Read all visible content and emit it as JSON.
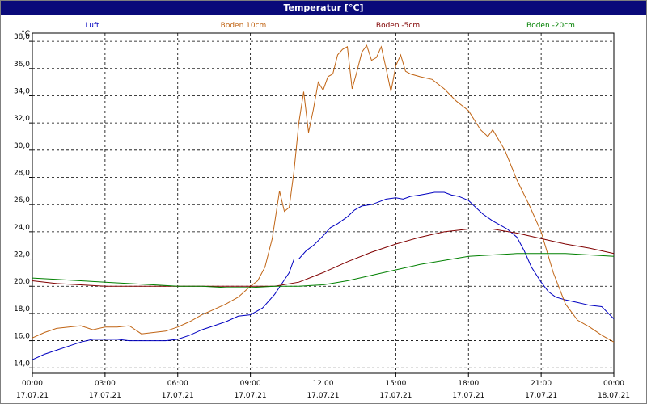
{
  "window": {
    "title": "Temperatur [°C]"
  },
  "chart_data": {
    "type": "line",
    "title": "Temperatur [°C]",
    "ylabel": "°C",
    "xlabel": "",
    "ylim": [
      13.6,
      38.6
    ],
    "yticks": [
      14.0,
      16.0,
      18.0,
      20.0,
      22.0,
      24.0,
      26.0,
      28.0,
      30.0,
      32.0,
      34.0,
      36.0,
      38.0
    ],
    "ytick_labels": [
      "14,0",
      "16,0",
      "18,0",
      "20,0",
      "22,0",
      "24,0",
      "26,0",
      "28,0",
      "30,0",
      "32,0",
      "34,0",
      "36,0",
      "38,0"
    ],
    "xlim": [
      0,
      24
    ],
    "xticks": [
      0,
      3,
      6,
      9,
      12,
      15,
      18,
      21,
      24
    ],
    "xtick_labels": [
      {
        "time": "00:00",
        "date": "17.07.21"
      },
      {
        "time": "03:00",
        "date": "17.07.21"
      },
      {
        "time": "06:00",
        "date": "17.07.21"
      },
      {
        "time": "09:00",
        "date": "17.07.21"
      },
      {
        "time": "12:00",
        "date": "17.07.21"
      },
      {
        "time": "15:00",
        "date": "17.07.21"
      },
      {
        "time": "18:00",
        "date": "17.07.21"
      },
      {
        "time": "21:00",
        "date": "17.07.21"
      },
      {
        "time": "00:00",
        "date": "18.07.21"
      }
    ],
    "grid": true,
    "legend": "top",
    "series": [
      {
        "name": "Luft",
        "color": "#0000c0",
        "points": [
          [
            0,
            14.6
          ],
          [
            0.5,
            15.0
          ],
          [
            1,
            15.3
          ],
          [
            1.5,
            15.6
          ],
          [
            2,
            15.9
          ],
          [
            2.5,
            16.1
          ],
          [
            3,
            16.1
          ],
          [
            3.5,
            16.1
          ],
          [
            4,
            16.0
          ],
          [
            4.5,
            16.0
          ],
          [
            5,
            16.0
          ],
          [
            5.5,
            16.0
          ],
          [
            6,
            16.1
          ],
          [
            6.5,
            16.4
          ],
          [
            7,
            16.8
          ],
          [
            7.5,
            17.1
          ],
          [
            8,
            17.4
          ],
          [
            8.5,
            17.8
          ],
          [
            9,
            17.9
          ],
          [
            9.5,
            18.4
          ],
          [
            10,
            19.4
          ],
          [
            10.3,
            20.2
          ],
          [
            10.6,
            21.0
          ],
          [
            10.8,
            22.0
          ],
          [
            11,
            22.0
          ],
          [
            11.3,
            22.6
          ],
          [
            11.6,
            23.0
          ],
          [
            12,
            23.7
          ],
          [
            12.3,
            24.3
          ],
          [
            12.6,
            24.6
          ],
          [
            13,
            25.1
          ],
          [
            13.3,
            25.6
          ],
          [
            13.6,
            25.9
          ],
          [
            14,
            26.0
          ],
          [
            14.3,
            26.2
          ],
          [
            14.6,
            26.4
          ],
          [
            15,
            26.5
          ],
          [
            15.3,
            26.4
          ],
          [
            15.6,
            26.6
          ],
          [
            16,
            26.7
          ],
          [
            16.3,
            26.8
          ],
          [
            16.6,
            26.9
          ],
          [
            17,
            26.9
          ],
          [
            17.3,
            26.7
          ],
          [
            17.6,
            26.6
          ],
          [
            18,
            26.3
          ],
          [
            18.3,
            25.8
          ],
          [
            18.6,
            25.3
          ],
          [
            19,
            24.8
          ],
          [
            19.3,
            24.5
          ],
          [
            19.6,
            24.2
          ],
          [
            20,
            23.6
          ],
          [
            20.3,
            22.6
          ],
          [
            20.6,
            21.4
          ],
          [
            21,
            20.3
          ],
          [
            21.3,
            19.6
          ],
          [
            21.6,
            19.2
          ],
          [
            22,
            19.0
          ],
          [
            22.5,
            18.8
          ],
          [
            23,
            18.6
          ],
          [
            23.5,
            18.5
          ],
          [
            24,
            17.6
          ]
        ]
      },
      {
        "name": "Boden 10cm",
        "color": "#c06414",
        "points": [
          [
            0,
            16.2
          ],
          [
            0.5,
            16.6
          ],
          [
            1,
            16.9
          ],
          [
            1.5,
            17.0
          ],
          [
            2,
            17.1
          ],
          [
            2.5,
            16.8
          ],
          [
            3,
            17.0
          ],
          [
            3.5,
            17.0
          ],
          [
            4,
            17.1
          ],
          [
            4.5,
            16.5
          ],
          [
            5,
            16.6
          ],
          [
            5.5,
            16.7
          ],
          [
            6,
            17.0
          ],
          [
            6.5,
            17.4
          ],
          [
            7,
            17.9
          ],
          [
            7.5,
            18.3
          ],
          [
            8,
            18.7
          ],
          [
            8.5,
            19.2
          ],
          [
            9,
            20.0
          ],
          [
            9.3,
            20.4
          ],
          [
            9.6,
            21.4
          ],
          [
            9.9,
            23.5
          ],
          [
            10.2,
            27.0
          ],
          [
            10.4,
            25.5
          ],
          [
            10.6,
            25.8
          ],
          [
            10.8,
            28.5
          ],
          [
            11,
            32.0
          ],
          [
            11.2,
            34.3
          ],
          [
            11.4,
            31.3
          ],
          [
            11.6,
            33.0
          ],
          [
            11.8,
            35.0
          ],
          [
            12,
            34.4
          ],
          [
            12.2,
            35.4
          ],
          [
            12.4,
            35.6
          ],
          [
            12.6,
            37.0
          ],
          [
            12.8,
            37.4
          ],
          [
            13,
            37.6
          ],
          [
            13.2,
            34.5
          ],
          [
            13.4,
            35.8
          ],
          [
            13.6,
            37.2
          ],
          [
            13.8,
            37.7
          ],
          [
            14,
            36.6
          ],
          [
            14.2,
            36.8
          ],
          [
            14.4,
            37.6
          ],
          [
            14.6,
            36.0
          ],
          [
            14.8,
            34.3
          ],
          [
            15,
            36.2
          ],
          [
            15.2,
            37.0
          ],
          [
            15.4,
            35.8
          ],
          [
            15.6,
            35.6
          ],
          [
            16,
            35.4
          ],
          [
            16.5,
            35.2
          ],
          [
            17,
            34.5
          ],
          [
            17.5,
            33.6
          ],
          [
            18,
            32.9
          ],
          [
            18.5,
            31.5
          ],
          [
            18.8,
            31.0
          ],
          [
            19,
            31.5
          ],
          [
            19.5,
            30.0
          ],
          [
            20,
            27.8
          ],
          [
            20.5,
            26.0
          ],
          [
            21,
            24.0
          ],
          [
            21.5,
            21.0
          ],
          [
            22,
            18.7
          ],
          [
            22.5,
            17.5
          ],
          [
            23,
            17.0
          ],
          [
            23.5,
            16.4
          ],
          [
            24,
            15.9
          ]
        ]
      },
      {
        "name": "Boden -5cm",
        "color": "#800000",
        "points": [
          [
            0,
            20.4
          ],
          [
            1,
            20.2
          ],
          [
            2,
            20.1
          ],
          [
            3,
            20.0
          ],
          [
            4,
            20.0
          ],
          [
            5,
            20.0
          ],
          [
            6,
            20.0
          ],
          [
            7,
            20.0
          ],
          [
            8,
            20.0
          ],
          [
            9,
            20.0
          ],
          [
            10,
            20.0
          ],
          [
            11,
            20.3
          ],
          [
            12,
            21.0
          ],
          [
            13,
            21.8
          ],
          [
            14,
            22.5
          ],
          [
            15,
            23.1
          ],
          [
            16,
            23.6
          ],
          [
            17,
            24.0
          ],
          [
            18,
            24.2
          ],
          [
            19,
            24.2
          ],
          [
            20,
            23.9
          ],
          [
            21,
            23.5
          ],
          [
            22,
            23.1
          ],
          [
            23,
            22.8
          ],
          [
            24,
            22.4
          ]
        ]
      },
      {
        "name": "Boden -20cm",
        "color": "#008000",
        "points": [
          [
            0,
            20.6
          ],
          [
            1,
            20.5
          ],
          [
            2,
            20.4
          ],
          [
            3,
            20.3
          ],
          [
            4,
            20.2
          ],
          [
            5,
            20.1
          ],
          [
            6,
            20.0
          ],
          [
            7,
            20.0
          ],
          [
            8,
            19.9
          ],
          [
            9,
            19.9
          ],
          [
            10,
            20.0
          ],
          [
            11,
            20.0
          ],
          [
            12,
            20.1
          ],
          [
            13,
            20.4
          ],
          [
            14,
            20.8
          ],
          [
            15,
            21.2
          ],
          [
            16,
            21.6
          ],
          [
            17,
            21.9
          ],
          [
            18,
            22.2
          ],
          [
            19,
            22.3
          ],
          [
            20,
            22.4
          ],
          [
            21,
            22.4
          ],
          [
            22,
            22.4
          ],
          [
            23,
            22.3
          ],
          [
            24,
            22.2
          ]
        ]
      }
    ]
  }
}
